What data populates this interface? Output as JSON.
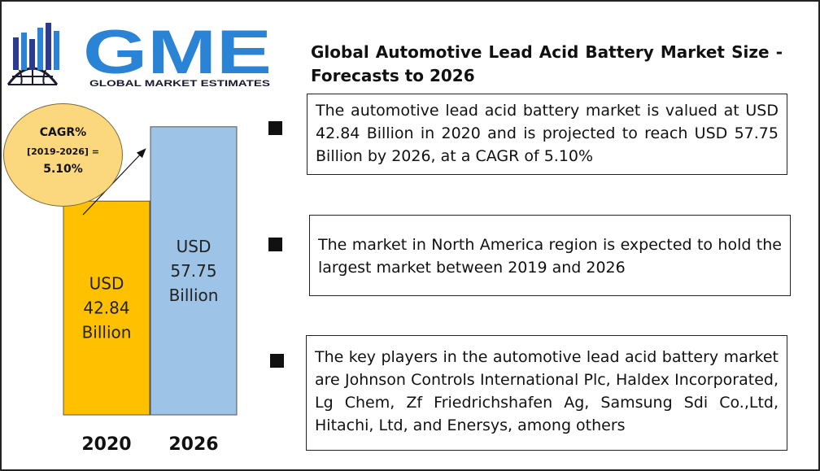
{
  "logo": {
    "main_text": "GME",
    "sub_text": "GLOBAL MARKET ESTIMATES",
    "colors": {
      "blue": "#2b83d6",
      "dark": "#1a1a2e",
      "navy": "#2d3b8f"
    }
  },
  "title": "Global Automotive Lead Acid Battery Market Size - Forecasts to 2026",
  "cagr": {
    "line1": "CAGR%",
    "line2": "[2019-2026] =",
    "line3": "5.10%"
  },
  "chart_data": {
    "type": "bar",
    "categories": [
      "2020",
      "2026"
    ],
    "values": [
      42.84,
      57.75
    ],
    "bar_labels": [
      [
        "USD",
        "42.84",
        "Billion"
      ],
      [
        "USD",
        "57.75",
        "Billion"
      ]
    ],
    "colors": [
      "#ffc000",
      "#9dc3e6"
    ],
    "ylim": [
      0,
      75
    ],
    "grid": false,
    "title": "",
    "xlabel": "",
    "ylabel": ""
  },
  "points": [
    "The automotive lead acid battery market is valued at USD 42.84 Billion in 2020 and is projected to reach USD 57.75 Billion by 2026, at a CAGR of 5.10%",
    "The market in North America region is expected to hold the largest market between 2019 and 2026",
    "The key players in the automotive lead acid battery market are  Johnson Controls International Plc, Haldex Incorporated, Lg Chem, Zf Friedrichshafen Ag, Samsung Sdi Co.,Ltd, Hitachi, Ltd, and Enersys, among others"
  ]
}
